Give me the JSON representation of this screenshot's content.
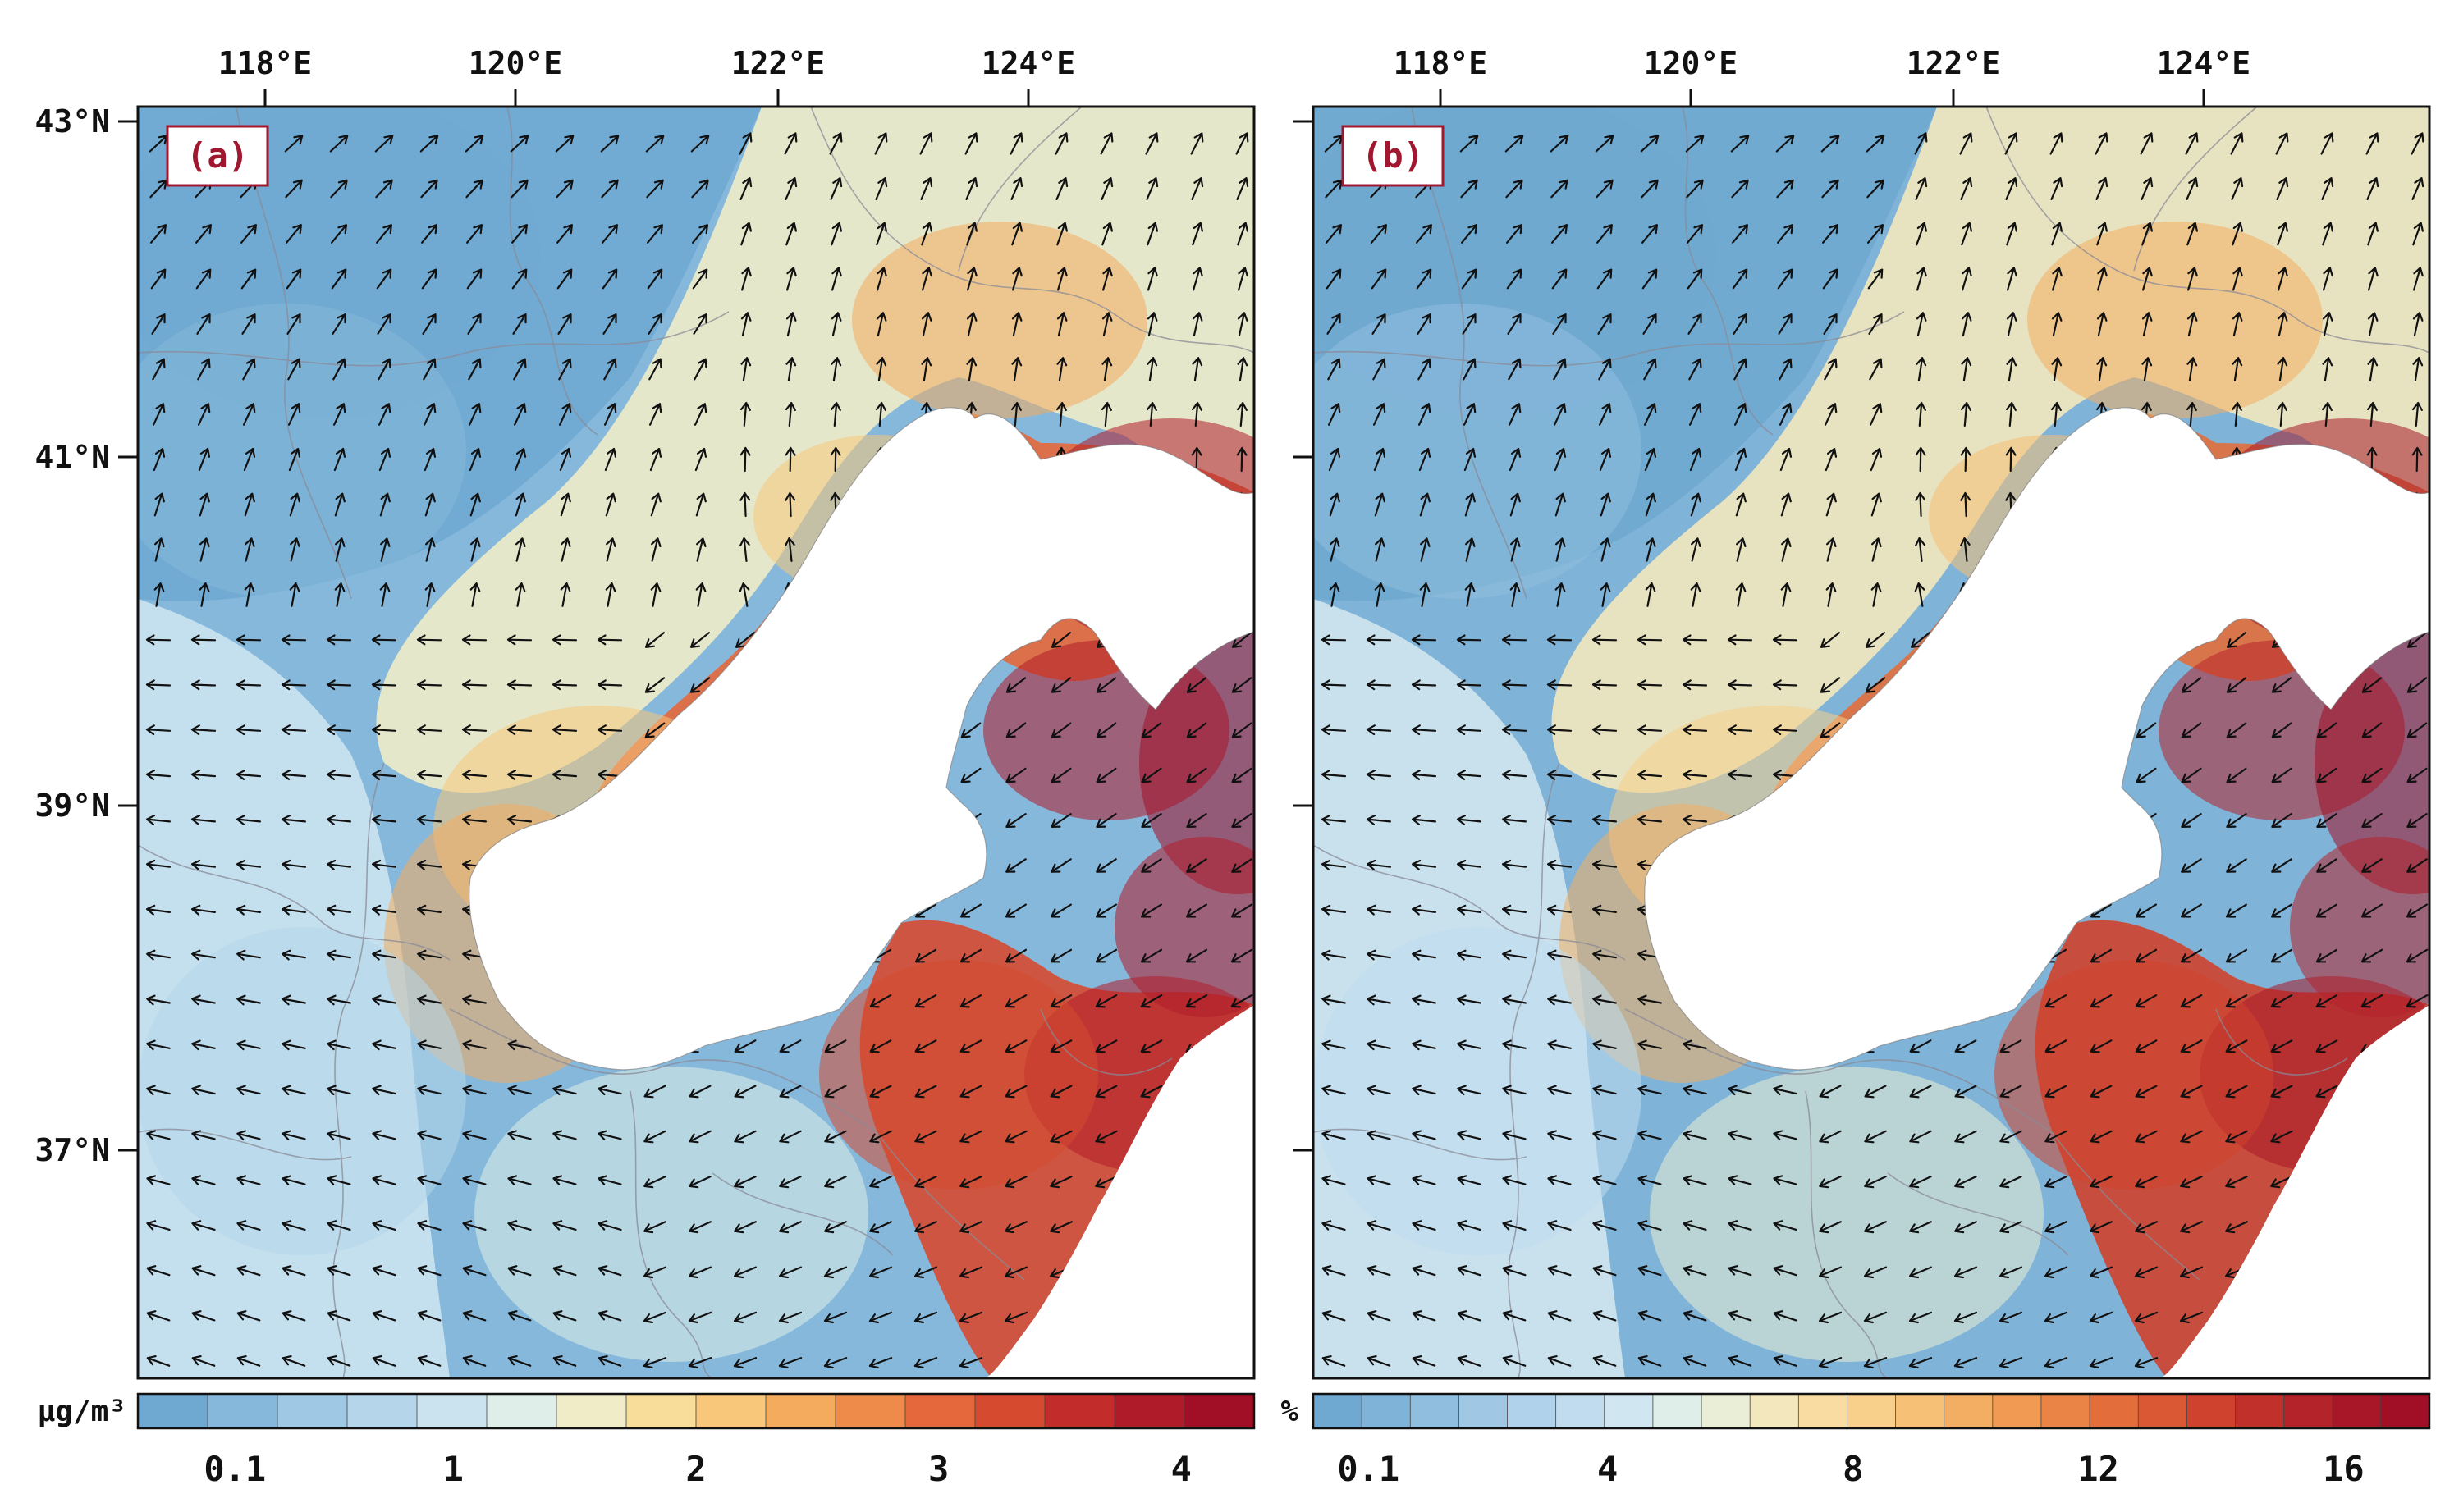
{
  "panels": [
    {
      "id": "a",
      "label": "(a)",
      "x_ticks": [
        "118°E",
        "120°E",
        "122°E",
        "124°E"
      ],
      "y_ticks": [
        "43°N",
        "41°N",
        "39°N",
        "37°N"
      ],
      "colorbar": {
        "unit": "μg/m³",
        "tick_labels": [
          "0.1",
          "1",
          "2",
          "3",
          "4"
        ],
        "tick_values": [
          0.1,
          1,
          2,
          3,
          4
        ],
        "vmin": -0.3,
        "vmax": 4.3,
        "colors": [
          "#6fa8d0",
          "#86b8db",
          "#9ec8e3",
          "#b5d6ea",
          "#cbe3ef",
          "#dfeee8",
          "#f0ecc8",
          "#f8dc9a",
          "#f8c77a",
          "#f4ab5e",
          "#ee8a4a",
          "#e4683b",
          "#d64a30",
          "#c22d2b",
          "#b01b2a",
          "#a00f26"
        ]
      }
    },
    {
      "id": "b",
      "label": "(b)",
      "x_ticks": [
        "118°E",
        "120°E",
        "122°E",
        "124°E"
      ],
      "y_ticks": [
        "43°N",
        "41°N",
        "39°N",
        "37°N"
      ],
      "colorbar": {
        "unit": "%",
        "tick_labels": [
          "0.1",
          "4",
          "8",
          "12",
          "16"
        ],
        "tick_values": [
          0.1,
          4,
          8,
          12,
          16
        ],
        "vmin": -0.8,
        "vmax": 17.4,
        "colors": [
          "#6fa8d0",
          "#7fb3d8",
          "#8fbedf",
          "#a0c8e5",
          "#b0d2ea",
          "#c0dcee",
          "#d0e6f0",
          "#dfeee8",
          "#ebeed6",
          "#f3e7bd",
          "#f8dca2",
          "#f8cf8b",
          "#f7c077",
          "#f4ae63",
          "#f09a53",
          "#ea8446",
          "#e36e3c",
          "#da5834",
          "#cf432e",
          "#c2302b",
          "#b4222a",
          "#a81728",
          "#a00f26"
        ]
      }
    }
  ]
}
